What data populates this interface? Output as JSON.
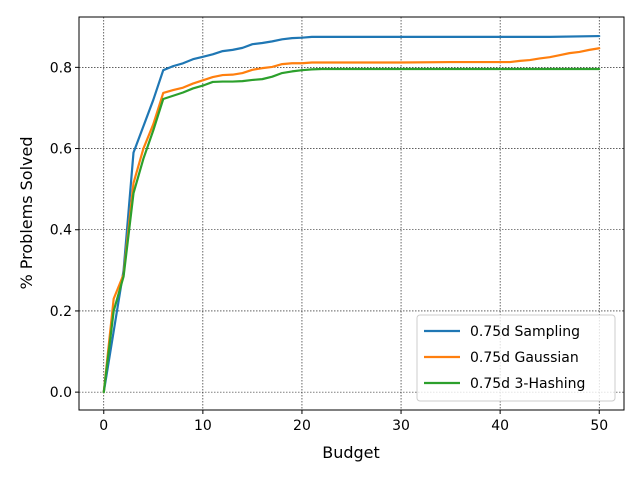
{
  "chart_data": {
    "type": "line",
    "title": "",
    "xlabel": "Budget",
    "ylabel": "% Problems Solved",
    "xlim": [
      -2.5,
      52.5
    ],
    "ylim": [
      -0.044,
      0.924
    ],
    "xticks": [
      0,
      10,
      20,
      30,
      40,
      50
    ],
    "yticks": [
      0.0,
      0.2,
      0.4,
      0.6,
      0.8
    ],
    "xtick_labels": [
      "0",
      "10",
      "20",
      "30",
      "40",
      "50"
    ],
    "ytick_labels": [
      "0.0",
      "0.2",
      "0.4",
      "0.6",
      "0.8"
    ],
    "grid": true,
    "legend_position": "lower-right",
    "series": [
      {
        "name": "0.75d Sampling",
        "color": "#1f77b4",
        "x": [
          0,
          1,
          2,
          3,
          4,
          5,
          6,
          7,
          8,
          9,
          10,
          11,
          12,
          13,
          14,
          15,
          16,
          17,
          18,
          19,
          20,
          21,
          22,
          25,
          30,
          35,
          40,
          45,
          50
        ],
        "y": [
          0.0,
          0.15,
          0.3,
          0.59,
          0.655,
          0.72,
          0.793,
          0.803,
          0.81,
          0.82,
          0.826,
          0.832,
          0.84,
          0.843,
          0.848,
          0.857,
          0.86,
          0.864,
          0.869,
          0.872,
          0.873,
          0.875,
          0.875,
          0.875,
          0.875,
          0.875,
          0.875,
          0.875,
          0.877
        ]
      },
      {
        "name": "0.75d Gaussian",
        "color": "#ff7f0e",
        "x": [
          0,
          1,
          2,
          3,
          4,
          5,
          6,
          7,
          8,
          9,
          10,
          11,
          12,
          13,
          14,
          15,
          16,
          17,
          18,
          19,
          20,
          21,
          22,
          25,
          30,
          35,
          40,
          41,
          42,
          43,
          44,
          45,
          46,
          47,
          48,
          49,
          50
        ],
        "y": [
          0.0,
          0.23,
          0.29,
          0.515,
          0.6,
          0.66,
          0.737,
          0.744,
          0.75,
          0.76,
          0.768,
          0.776,
          0.781,
          0.782,
          0.786,
          0.794,
          0.798,
          0.801,
          0.808,
          0.81,
          0.81,
          0.812,
          0.812,
          0.812,
          0.812,
          0.813,
          0.813,
          0.813,
          0.816,
          0.818,
          0.822,
          0.825,
          0.83,
          0.835,
          0.838,
          0.843,
          0.847
        ]
      },
      {
        "name": "0.75d 3-Hashing",
        "color": "#2ca02c",
        "x": [
          0,
          1,
          2,
          3,
          4,
          5,
          6,
          7,
          8,
          9,
          10,
          11,
          12,
          13,
          14,
          15,
          16,
          17,
          18,
          19,
          20,
          21,
          22,
          25,
          30,
          35,
          40,
          45,
          50
        ],
        "y": [
          0.0,
          0.2,
          0.285,
          0.49,
          0.575,
          0.645,
          0.722,
          0.73,
          0.738,
          0.748,
          0.755,
          0.764,
          0.765,
          0.765,
          0.766,
          0.769,
          0.771,
          0.777,
          0.786,
          0.79,
          0.793,
          0.795,
          0.796,
          0.796,
          0.796,
          0.796,
          0.796,
          0.796,
          0.796
        ]
      }
    ]
  }
}
